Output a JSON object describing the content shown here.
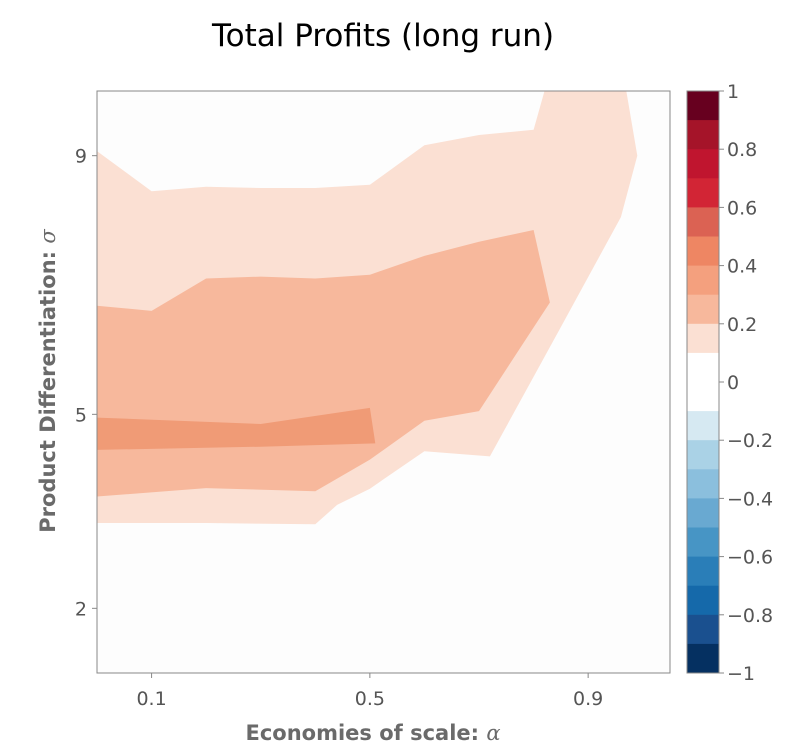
{
  "chart_data": {
    "type": "heatmap",
    "title": "Total Profits (long run)",
    "xlabel": "Economies of scale: ",
    "xlabel_symbol": "α",
    "ylabel": "Product Differentiation: ",
    "ylabel_symbol": "σ",
    "xlim": [
      0.0,
      1.05
    ],
    "ylim": [
      1.0,
      10.0
    ],
    "x_ticks": [
      0.1,
      0.5,
      0.9
    ],
    "x_tick_labels": [
      "0.1",
      "0.5",
      "0.9"
    ],
    "y_ticks": [
      2,
      5,
      9
    ],
    "y_tick_labels": [
      "2",
      "5",
      "9"
    ],
    "colorbar": {
      "range": [
        -1,
        1
      ],
      "tick_values": [
        1,
        0.8,
        0.6,
        0.4,
        0.2,
        0,
        -0.2,
        -0.4,
        -0.6,
        -0.8,
        -1
      ],
      "tick_labels": [
        "1",
        "0.8",
        "0.6",
        "0.4",
        "0.2",
        "0",
        "−0.2",
        "−0.4",
        "−0.6",
        "−0.8",
        "−1"
      ],
      "levels": [
        {
          "lo": 0.9,
          "hi": 1.0,
          "color": "#67001f"
        },
        {
          "lo": 0.8,
          "hi": 0.9,
          "color": "#a51429"
        },
        {
          "lo": 0.7,
          "hi": 0.8,
          "color": "#c0152f"
        },
        {
          "lo": 0.6,
          "hi": 0.7,
          "color": "#d22535"
        },
        {
          "lo": 0.5,
          "hi": 0.6,
          "color": "#db6253"
        },
        {
          "lo": 0.4,
          "hi": 0.5,
          "color": "#ee8663"
        },
        {
          "lo": 0.3,
          "hi": 0.4,
          "color": "#f4a07e"
        },
        {
          "lo": 0.2,
          "hi": 0.3,
          "color": "#f7b89c"
        },
        {
          "lo": 0.1,
          "hi": 0.2,
          "color": "#fbe0d3"
        },
        {
          "lo": -0.1,
          "hi": 0.1,
          "color": "#ffffff"
        },
        {
          "lo": -0.2,
          "hi": -0.1,
          "color": "#d6e9f2"
        },
        {
          "lo": -0.3,
          "hi": -0.2,
          "color": "#aad2e6"
        },
        {
          "lo": -0.4,
          "hi": -0.3,
          "color": "#8bbfdd"
        },
        {
          "lo": -0.5,
          "hi": -0.4,
          "color": "#69a9d1"
        },
        {
          "lo": -0.6,
          "hi": -0.5,
          "color": "#4795c5"
        },
        {
          "lo": -0.7,
          "hi": -0.6,
          "color": "#2a7eb8"
        },
        {
          "lo": -0.8,
          "hi": -0.7,
          "color": "#1569aa"
        },
        {
          "lo": -0.9,
          "hi": -0.8,
          "color": "#1a508f"
        },
        {
          "lo": -1.0,
          "hi": -0.9,
          "color": "#053061"
        }
      ]
    },
    "background_level": {
      "label": "0",
      "color": "#fdfdfd"
    },
    "regions": [
      {
        "name": "profit-0.1-0.2",
        "color": "#fbe0d3",
        "points": [
          [
            0.0,
            9.07
          ],
          [
            0.1,
            8.45
          ],
          [
            0.2,
            8.52
          ],
          [
            0.3,
            8.5
          ],
          [
            0.4,
            8.5
          ],
          [
            0.5,
            8.55
          ],
          [
            0.6,
            9.16
          ],
          [
            0.7,
            9.32
          ],
          [
            0.8,
            9.4
          ],
          [
            0.82,
            10.0
          ],
          [
            0.97,
            10.0
          ],
          [
            0.99,
            9.0
          ],
          [
            0.96,
            8.05
          ],
          [
            0.85,
            6.35
          ],
          [
            0.72,
            4.35
          ],
          [
            0.6,
            4.43
          ],
          [
            0.5,
            3.85
          ],
          [
            0.44,
            3.6
          ],
          [
            0.4,
            3.3
          ],
          [
            0.2,
            3.32
          ],
          [
            0.0,
            3.32
          ]
        ]
      },
      {
        "name": "profit-0.2-0.3",
        "color": "#f7b89c",
        "points": [
          [
            0.0,
            6.68
          ],
          [
            0.1,
            6.6
          ],
          [
            0.2,
            7.1
          ],
          [
            0.3,
            7.13
          ],
          [
            0.4,
            7.1
          ],
          [
            0.5,
            7.16
          ],
          [
            0.6,
            7.45
          ],
          [
            0.7,
            7.67
          ],
          [
            0.8,
            7.85
          ],
          [
            0.83,
            6.73
          ],
          [
            0.7,
            5.05
          ],
          [
            0.6,
            4.9
          ],
          [
            0.5,
            4.3
          ],
          [
            0.4,
            3.81
          ],
          [
            0.2,
            3.86
          ],
          [
            0.0,
            3.73
          ]
        ]
      },
      {
        "name": "profit-0.3-0.4",
        "color": "#f09b76",
        "points": [
          [
            0.0,
            4.95
          ],
          [
            0.3,
            4.85
          ],
          [
            0.5,
            5.1
          ],
          [
            0.51,
            4.55
          ],
          [
            0.3,
            4.5
          ],
          [
            0.0,
            4.45
          ]
        ]
      }
    ]
  }
}
